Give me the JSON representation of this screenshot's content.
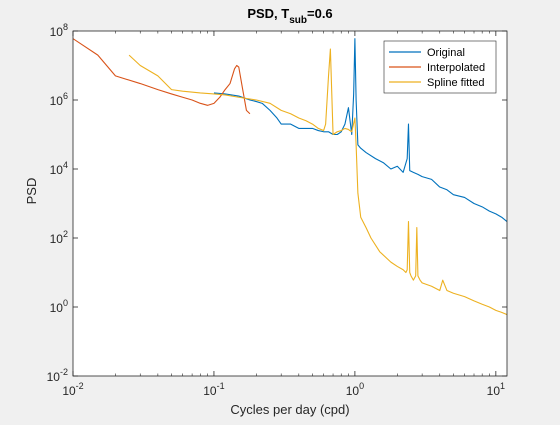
{
  "chart_data": {
    "type": "line",
    "title": {
      "prefix": "PSD, T",
      "subscript": "sub",
      "suffix": "=0.6"
    },
    "xlabel": "Cycles per day (cpd)",
    "ylabel": "PSD",
    "xscale": "log",
    "yscale": "log",
    "xlim": [
      0.01,
      12
    ],
    "ylim": [
      0.01,
      100000000
    ],
    "xticks": [
      {
        "value": 0.01,
        "base": "10",
        "exp": "-2"
      },
      {
        "value": 0.1,
        "base": "10",
        "exp": "-1"
      },
      {
        "value": 1,
        "base": "10",
        "exp": "0"
      },
      {
        "value": 10,
        "base": "10",
        "exp": "1"
      }
    ],
    "yticks": [
      {
        "value": 0.01,
        "base": "10",
        "exp": "-2"
      },
      {
        "value": 1,
        "base": "10",
        "exp": "0"
      },
      {
        "value": 100,
        "base": "10",
        "exp": "2"
      },
      {
        "value": 10000,
        "base": "10",
        "exp": "4"
      },
      {
        "value": 1000000,
        "base": "10",
        "exp": "6"
      },
      {
        "value": 100000000,
        "base": "10",
        "exp": "8"
      }
    ],
    "grid": false,
    "legend_position": "top-right",
    "series": [
      {
        "name": "Original",
        "color": "#0072BD",
        "x": [
          0.1,
          0.12,
          0.15,
          0.18,
          0.2,
          0.22,
          0.25,
          0.28,
          0.3,
          0.35,
          0.4,
          0.45,
          0.5,
          0.55,
          0.6,
          0.65,
          0.7,
          0.75,
          0.8,
          0.85,
          0.9,
          0.95,
          0.98,
          1.0,
          1.02,
          1.05,
          1.1,
          1.2,
          1.4,
          1.6,
          1.8,
          2.0,
          2.2,
          2.35,
          2.4,
          2.45,
          2.6,
          2.8,
          3.0,
          3.5,
          4.0,
          4.5,
          5.0,
          6.0,
          7.0,
          8.0,
          9.0,
          10.0,
          11.0,
          12.0
        ],
        "y": [
          1600000,
          1500000,
          1300000,
          1000000,
          900000,
          800000,
          500000,
          300000,
          200000,
          200000,
          150000,
          150000,
          150000,
          130000,
          120000,
          120000,
          100000,
          100000,
          120000,
          200000,
          600000,
          100000,
          1500000,
          60000000,
          1000000,
          50000,
          40000,
          30000,
          20000,
          15000,
          10000,
          12000,
          8000,
          20000,
          200000,
          9000,
          8000,
          7000,
          6000,
          5000,
          3000,
          2500,
          1800,
          1500,
          1000,
          800,
          600,
          500,
          400,
          300
        ]
      },
      {
        "name": "Interpolated",
        "color": "#D95319",
        "x": [
          0.01,
          0.015,
          0.02,
          0.03,
          0.04,
          0.05,
          0.06,
          0.07,
          0.08,
          0.09,
          0.1,
          0.11,
          0.12,
          0.13,
          0.14,
          0.145,
          0.15,
          0.16,
          0.17,
          0.18
        ],
        "y": [
          60000000,
          20000000,
          5000000,
          3000000,
          2000000,
          1500000,
          1200000,
          1000000,
          800000,
          700000,
          800000,
          1200000,
          2000000,
          3000000,
          8000000,
          10000000,
          9000000,
          2000000,
          500000,
          400000
        ]
      },
      {
        "name": "Spline fitted",
        "color": "#EDB120",
        "x": [
          0.025,
          0.03,
          0.04,
          0.05,
          0.06,
          0.08,
          0.1,
          0.12,
          0.15,
          0.2,
          0.25,
          0.3,
          0.35,
          0.4,
          0.45,
          0.5,
          0.55,
          0.6,
          0.62,
          0.65,
          0.67,
          0.7,
          0.75,
          0.8,
          0.85,
          0.9,
          0.92,
          0.95,
          1.0,
          1.02,
          1.05,
          1.1,
          1.2,
          1.3,
          1.5,
          1.8,
          2.0,
          2.2,
          2.3,
          2.35,
          2.4,
          2.45,
          2.5,
          2.6,
          2.7,
          2.75,
          2.8,
          2.9,
          3.0,
          3.5,
          4.0,
          4.2,
          4.5,
          5.0,
          6.0,
          7.0,
          8.0,
          9.0,
          10.0,
          11.0,
          12.0
        ],
        "y": [
          20000000,
          10000000,
          5000000,
          2000000,
          1800000,
          1600000,
          1500000,
          1400000,
          1200000,
          1000000,
          800000,
          500000,
          400000,
          300000,
          250000,
          200000,
          150000,
          130000,
          200000,
          5000000,
          30000000,
          100000,
          120000,
          130000,
          150000,
          140000,
          130000,
          120000,
          300000,
          50000,
          2000,
          400,
          200,
          100,
          40,
          20,
          15,
          12,
          10,
          12,
          300,
          10,
          8,
          6,
          8,
          200,
          8,
          6,
          5,
          4,
          3,
          6,
          3,
          2.5,
          2,
          1.5,
          1.2,
          1,
          0.8,
          0.7,
          0.6
        ]
      }
    ]
  }
}
